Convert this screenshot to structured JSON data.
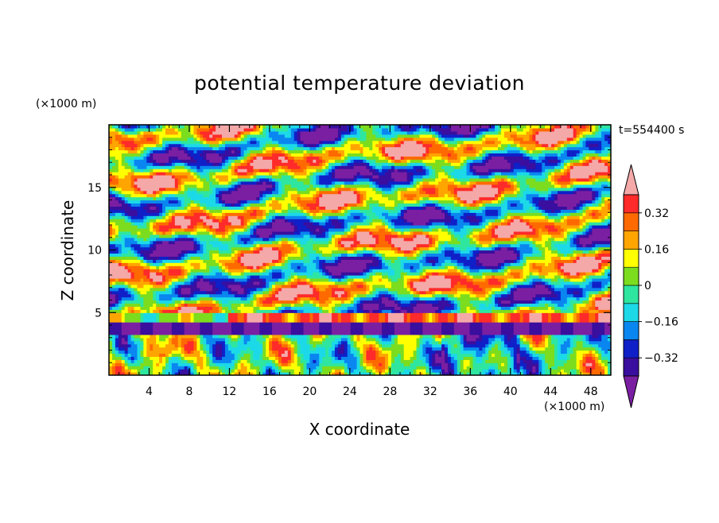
{
  "chart_data": {
    "type": "heatmap",
    "title": "potential temperature deviation",
    "xlabel": "X coordinate",
    "ylabel": "Z coordinate",
    "x_unit": "(×1000 m)",
    "y_unit": "(×1000 m)",
    "time_label": "t=554400 s",
    "xlim": [
      0,
      50
    ],
    "ylim": [
      0,
      20
    ],
    "x_ticks": [
      4,
      8,
      12,
      16,
      20,
      24,
      28,
      32,
      36,
      40,
      44,
      48
    ],
    "y_ticks": [
      5,
      10,
      15
    ],
    "colorbar": {
      "tick_values": [
        0.32,
        0.16,
        0,
        -0.16,
        -0.32
      ],
      "tick_labels": [
        "0.32",
        "0.16",
        "0",
        "−0.16",
        "−0.32"
      ],
      "levels": [
        -0.4,
        -0.32,
        -0.24,
        -0.16,
        -0.08,
        0,
        0.08,
        0.16,
        0.24,
        0.32,
        0.4
      ],
      "colors": [
        "#7b1fa2",
        "#3a0e9e",
        "#1020c8",
        "#0a86f0",
        "#1cd9e8",
        "#2ee6a0",
        "#7cdc1e",
        "#ffff00",
        "#ffa500",
        "#ff6a00",
        "#ff2a2a",
        "#f4a8a8"
      ],
      "extend": "both"
    }
  }
}
